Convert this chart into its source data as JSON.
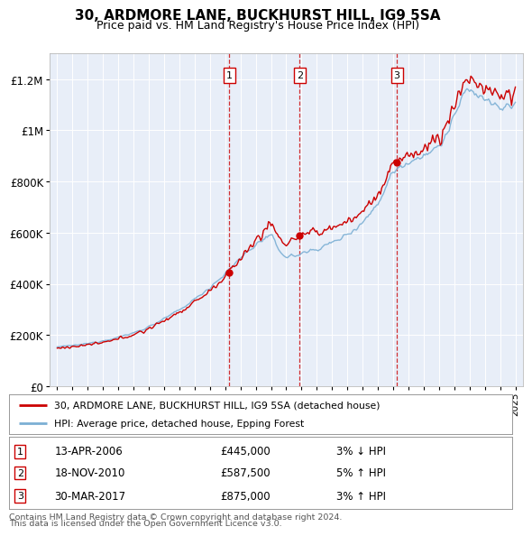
{
  "title": "30, ARDMORE LANE, BUCKHURST HILL, IG9 5SA",
  "subtitle": "Price paid vs. HM Land Registry's House Price Index (HPI)",
  "legend_line1": "30, ARDMORE LANE, BUCKHURST HILL, IG9 5SA (detached house)",
  "legend_line2": "HPI: Average price, detached house, Epping Forest",
  "footer1": "Contains HM Land Registry data © Crown copyright and database right 2024.",
  "footer2": "This data is licensed under the Open Government Licence v3.0.",
  "sale_color": "#cc0000",
  "hpi_color": "#7bafd4",
  "background_color": "#e8eef8",
  "sale_points": [
    {
      "num": 1,
      "date": "13-APR-2006",
      "price": 445000,
      "change": "3% ↓ HPI",
      "x_year": 2006.28
    },
    {
      "num": 2,
      "date": "18-NOV-2010",
      "price": 587500,
      "change": "5% ↑ HPI",
      "x_year": 2010.88
    },
    {
      "num": 3,
      "date": "30-MAR-2017",
      "price": 875000,
      "change": "3% ↑ HPI",
      "x_year": 2017.24
    }
  ],
  "ylim": [
    0,
    1300000
  ],
  "xlim_start": 1994.5,
  "xlim_end": 2025.5,
  "yticks": [
    0,
    200000,
    400000,
    600000,
    800000,
    1000000,
    1200000
  ],
  "ytick_labels": [
    "£0",
    "£200K",
    "£400K",
    "£600K",
    "£800K",
    "£1M",
    "£1.2M"
  ],
  "xticks": [
    1995,
    1996,
    1997,
    1998,
    1999,
    2000,
    2001,
    2002,
    2003,
    2004,
    2005,
    2006,
    2007,
    2008,
    2009,
    2010,
    2011,
    2012,
    2013,
    2014,
    2015,
    2016,
    2017,
    2018,
    2019,
    2020,
    2021,
    2022,
    2023,
    2024,
    2025
  ],
  "title_fontsize": 11,
  "subtitle_fontsize": 9
}
